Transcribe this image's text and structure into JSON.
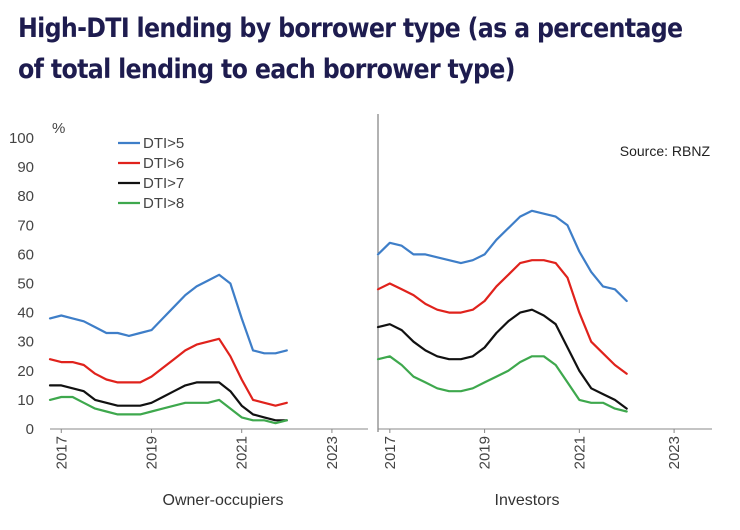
{
  "title": {
    "line1": "High-DTI lending by borrower type (as a percentage",
    "line2": "of total lending to each borrower type)"
  },
  "source": "Source: RBNZ",
  "unit_label": "%",
  "chart_data": {
    "type": "line",
    "title": "High-DTI lending by borrower type (as a percentage of total lending to each borrower type)",
    "ylabel": "%",
    "ylim": [
      0,
      100
    ],
    "yticks": [
      0,
      10,
      20,
      30,
      40,
      50,
      60,
      70,
      80,
      90,
      100
    ],
    "xticks": [
      "2017",
      "2019",
      "2021",
      "2023"
    ],
    "grid": false,
    "legend_position": "top-left",
    "legend": [
      "DTI>5",
      "DTI>6",
      "DTI>7",
      "DTI>8"
    ],
    "colors": {
      "DTI>5": "#3e7ec8",
      "DTI>6": "#e0221c",
      "DTI>7": "#111111",
      "DTI>8": "#3ea84d"
    },
    "panels": [
      {
        "name": "Owner-occupiers",
        "x_start": 2016.75,
        "x_end": 2023.8,
        "x_step": 0.25,
        "series": [
          {
            "name": "DTI>5",
            "values": [
              38,
              39,
              38,
              37,
              35,
              33,
              33,
              32,
              33,
              34,
              38,
              42,
              46,
              49,
              51,
              53,
              50,
              38,
              27,
              26,
              26,
              27
            ]
          },
          {
            "name": "DTI>6",
            "values": [
              24,
              23,
              23,
              22,
              19,
              17,
              16,
              16,
              16,
              18,
              21,
              24,
              27,
              29,
              30,
              31,
              25,
              17,
              10,
              9,
              8,
              9
            ]
          },
          {
            "name": "DTI>7",
            "values": [
              15,
              15,
              14,
              13,
              10,
              9,
              8,
              8,
              8,
              9,
              11,
              13,
              15,
              16,
              16,
              16,
              13,
              8,
              5,
              4,
              3,
              3
            ]
          },
          {
            "name": "DTI>8",
            "values": [
              10,
              11,
              11,
              9,
              7,
              6,
              5,
              5,
              5,
              6,
              7,
              8,
              9,
              9,
              9,
              10,
              7,
              4,
              3,
              3,
              2,
              3
            ]
          }
        ]
      },
      {
        "name": "Investors",
        "x_start": 2016.75,
        "x_end": 2023.8,
        "x_step": 0.25,
        "series": [
          {
            "name": "DTI>5",
            "values": [
              60,
              64,
              63,
              60,
              60,
              59,
              58,
              57,
              58,
              60,
              65,
              69,
              73,
              75,
              74,
              73,
              70,
              61,
              54,
              49,
              48,
              44
            ]
          },
          {
            "name": "DTI>6",
            "values": [
              48,
              50,
              48,
              46,
              43,
              41,
              40,
              40,
              41,
              44,
              49,
              53,
              57,
              58,
              58,
              57,
              52,
              40,
              30,
              26,
              22,
              19
            ]
          },
          {
            "name": "DTI>7",
            "values": [
              35,
              36,
              34,
              30,
              27,
              25,
              24,
              24,
              25,
              28,
              33,
              37,
              40,
              41,
              39,
              36,
              28,
              20,
              14,
              12,
              10,
              7
            ]
          },
          {
            "name": "DTI>8",
            "values": [
              24,
              25,
              22,
              18,
              16,
              14,
              13,
              13,
              14,
              16,
              18,
              20,
              23,
              25,
              25,
              22,
              16,
              10,
              9,
              9,
              7,
              6
            ]
          }
        ]
      }
    ]
  }
}
